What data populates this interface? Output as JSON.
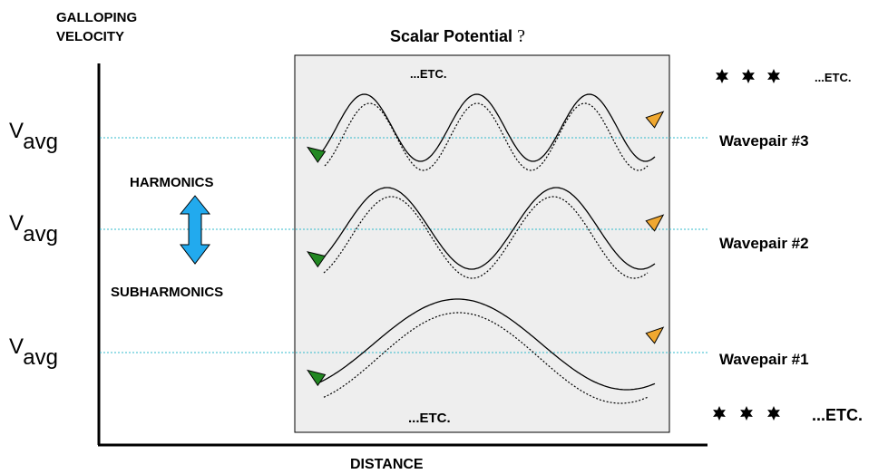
{
  "y_axis_label_line1": "GALLOPING",
  "y_axis_label_line2": "VELOCITY",
  "x_axis_label": "DISTANCE",
  "title": "Scalar Potential",
  "title_mark": "?",
  "etc_top": "...ETC.",
  "etc_bottom": "...ETC.",
  "etc_right_top": "...ETC.",
  "etc_right_bottom": "...ETC.",
  "v_label": "V",
  "v_subscript": "avg",
  "harmonics_label": "HARMONICS",
  "subharmonics_label": "SUBHARMONICS",
  "wavepairs": [
    {
      "label": "Wavepair #3",
      "cycles": 3
    },
    {
      "label": "Wavepair #2",
      "cycles": 2
    },
    {
      "label": "Wavepair #1",
      "cycles": 1
    }
  ],
  "colors": {
    "panel": "#eeeeee",
    "avg_line": "#33bbcc",
    "start_arrow": "#228822",
    "end_arrow": "#f0a830",
    "updown_arrow": "#22aaee"
  },
  "icons": {
    "star": "six-point-star-icon"
  }
}
